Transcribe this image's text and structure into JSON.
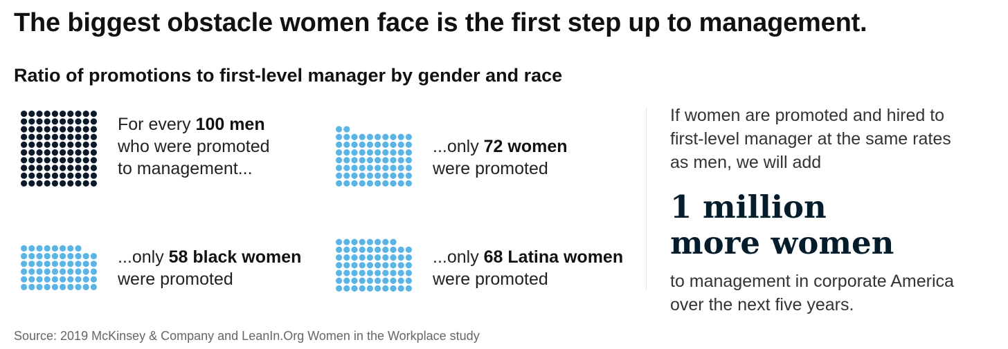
{
  "title": "The biggest obstacle women face is the first step up to management.",
  "subtitle": "Ratio of promotions to first-level manager by gender and race",
  "colors": {
    "men": "#0c1a2b",
    "women": "#5ab4e5",
    "big_text": "#051c2c"
  },
  "chart_data": {
    "type": "pictogram",
    "unit": "promotions per 100 men",
    "series": [
      {
        "name": "men",
        "value": 100,
        "caption_pre": "For every",
        "caption_bold": "100 men",
        "caption_lines": [
          "who were promoted",
          "to management..."
        ]
      },
      {
        "name": "women",
        "value": 72,
        "caption_pre": "...only",
        "caption_bold": "72 women",
        "caption_lines": [
          "were promoted"
        ]
      },
      {
        "name": "black women",
        "value": 58,
        "caption_pre": "...only",
        "caption_bold": "58 black women",
        "caption_lines": [
          "were promoted"
        ]
      },
      {
        "name": "Latina women",
        "value": 68,
        "caption_pre": "...only",
        "caption_bold": "68 Latina women",
        "caption_lines": [
          "were promoted"
        ]
      }
    ]
  },
  "callout": {
    "intro_lines": [
      "If women are promoted and hired to",
      "first-level manager at the same rates",
      "as men, we will add"
    ],
    "highlight_lines": [
      "1 million",
      "more women"
    ],
    "outro_lines": [
      "to management in corporate America",
      "over the next five years."
    ]
  },
  "source": "Source: 2019 McKinsey & Company and LeanIn.Org Women in the Workplace study"
}
